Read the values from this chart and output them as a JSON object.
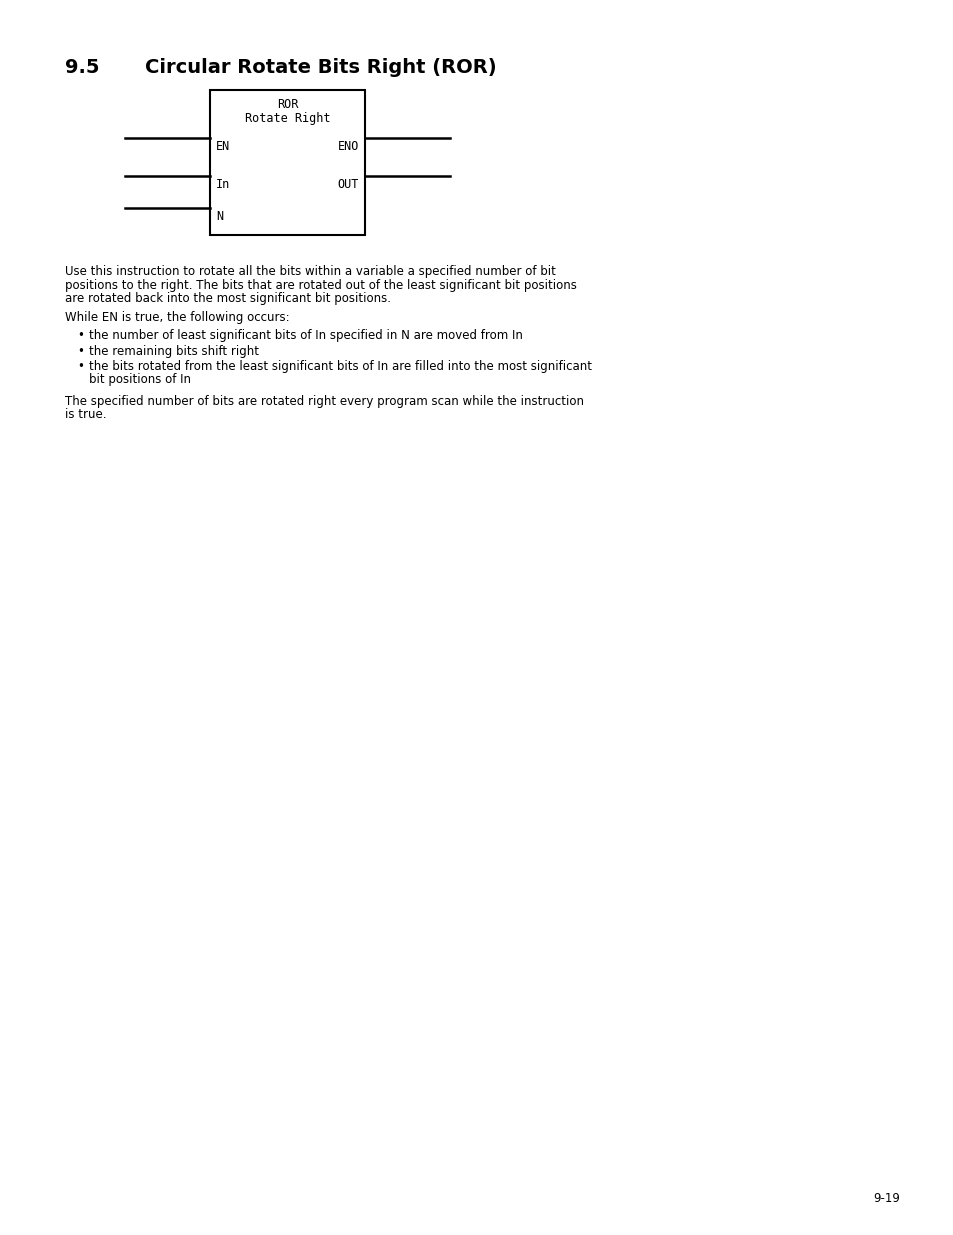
{
  "title_section": "9.5",
  "title_text": "Circular Rotate Bits Right (ROR)",
  "title_fontsize": 14,
  "bg_color": "#ffffff",
  "text_color": "#000000",
  "box_label_ror": "ROR",
  "box_label_rotate": "Rotate Right",
  "box_label_en": "EN",
  "box_label_eno": "ENO",
  "box_label_in": "In",
  "box_label_out": "OUT",
  "box_label_n": "N",
  "paragraph1": "Use this instruction to rotate all the bits within a variable a specified number of bit\npositions to the right. The bits that are rotated out of the least significant bit positions\nare rotated back into the most significant bit positions.",
  "paragraph2": "While EN is true, the following occurs:",
  "bullet1": "the number of least significant bits of In specified in N are moved from In",
  "bullet2": "the remaining bits shift right",
  "bullet3": "the bits rotated from the least significant bits of In are filled into the most significant\nbit positions of In",
  "paragraph3": "The specified number of bits are rotated right every program scan while the instruction\nis true.",
  "page_number": "9-19",
  "body_fontsize": 8.5
}
